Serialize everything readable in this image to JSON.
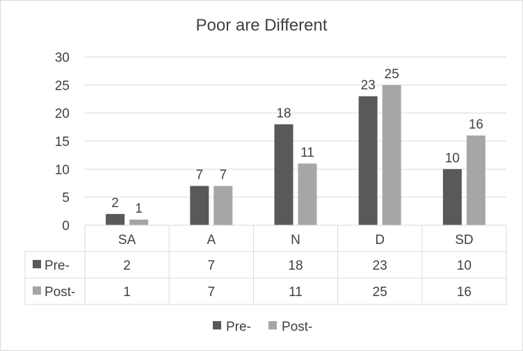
{
  "chart_data": {
    "type": "bar",
    "title": "Poor are Different",
    "categories": [
      "SA",
      "A",
      "N",
      "D",
      "SD"
    ],
    "series": [
      {
        "name": "Pre-",
        "values": [
          2,
          7,
          18,
          23,
          10
        ],
        "color": "#595959"
      },
      {
        "name": "Post-",
        "values": [
          1,
          7,
          11,
          25,
          16
        ],
        "color": "#a6a6a6"
      }
    ],
    "ylim": [
      0,
      30
    ],
    "yticks": [
      0,
      5,
      10,
      15,
      20,
      25,
      30
    ],
    "grid": true,
    "data_table": true,
    "legend_position": "bottom"
  }
}
